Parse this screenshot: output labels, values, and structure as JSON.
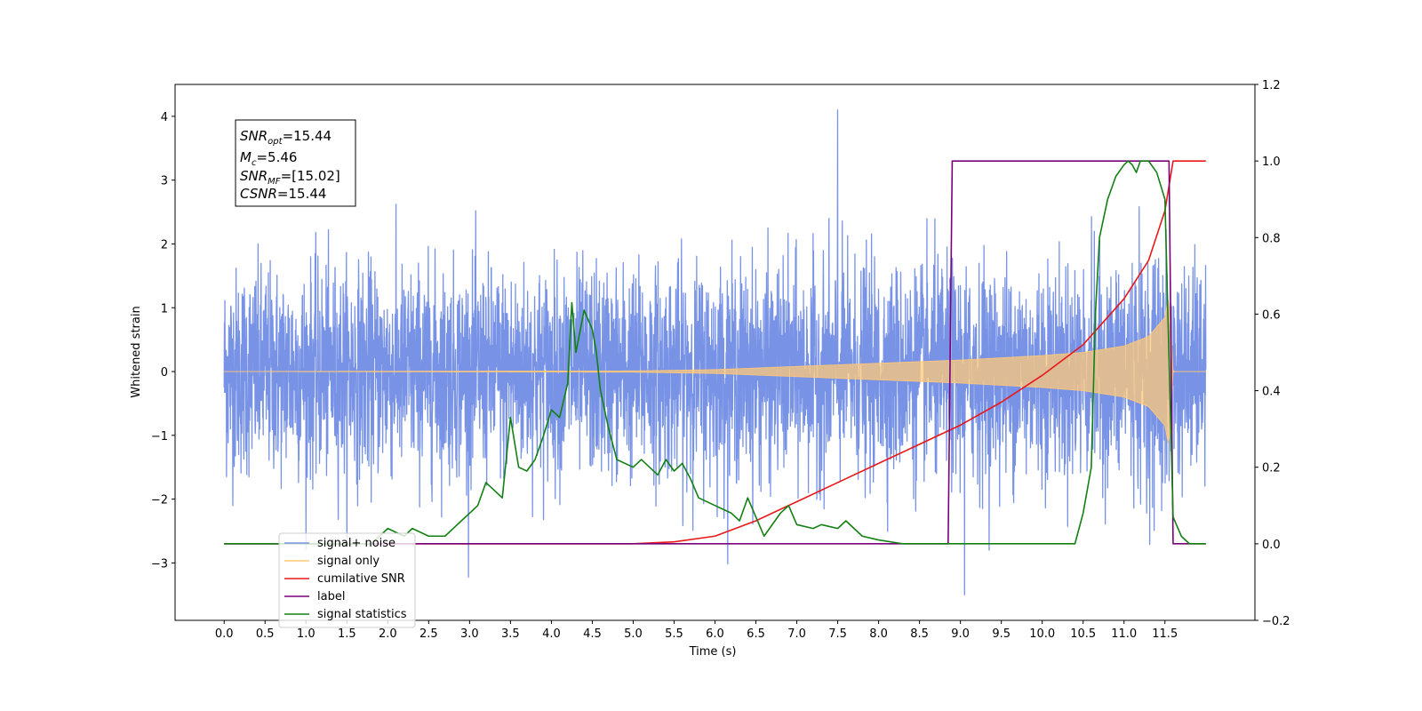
{
  "chart_data": {
    "type": "line",
    "xlabel": "Time (s)",
    "ylabel_left": "Whitened strain",
    "ylabel_right": "",
    "xlim": [
      -0.6,
      12.6
    ],
    "ylim_left": [
      -3.9,
      4.5
    ],
    "ylim_right": [
      -0.2,
      1.2
    ],
    "x_ticks": [
      "0.0",
      "0.5",
      "1.0",
      "1.5",
      "2.0",
      "2.5",
      "3.0",
      "3.5",
      "4.0",
      "4.5",
      "5.0",
      "5.5",
      "6.0",
      "6.5",
      "7.0",
      "7.5",
      "8.0",
      "8.5",
      "9.0",
      "9.5",
      "10.0",
      "10.5",
      "11.0",
      "11.5"
    ],
    "y_ticks_left": [
      "−3",
      "−2",
      "−1",
      "0",
      "1",
      "2",
      "3",
      "4"
    ],
    "y_ticks_right": [
      "−0.2",
      "0.0",
      "0.2",
      "0.4",
      "0.6",
      "0.8",
      "1.0",
      "1.2"
    ],
    "grid": false,
    "legend_position": "lower-left",
    "annotation": {
      "lines": [
        {
          "pre": "SNR",
          "sub": "opt",
          "post": "=15.44"
        },
        {
          "pre": "M",
          "sub": "c",
          "post": "=5.46"
        },
        {
          "pre": "SNR",
          "sub": "MF",
          "post": "=[15.02]"
        },
        {
          "pre": "CSNR",
          "sub": "",
          "post": "=15.44"
        }
      ]
    },
    "series": [
      {
        "name": "signal+ noise",
        "color": "#7893e6",
        "axis": "left",
        "x_range": [
          0.0,
          12.0
        ],
        "noise_std": 0.8,
        "notable_peaks": [
          {
            "x": 7.5,
            "y": 4.1
          },
          {
            "x": 9.05,
            "y": -3.5
          }
        ]
      },
      {
        "name": "signal only",
        "color": "#ffc878",
        "axis": "left",
        "x_range": [
          0.0,
          12.0
        ],
        "envelope": [
          [
            0.0,
            0.0
          ],
          [
            5.0,
            0.01
          ],
          [
            6.0,
            0.03
          ],
          [
            7.0,
            0.08
          ],
          [
            8.0,
            0.13
          ],
          [
            9.0,
            0.18
          ],
          [
            10.0,
            0.25
          ],
          [
            10.5,
            0.3
          ],
          [
            11.0,
            0.4
          ],
          [
            11.3,
            0.55
          ],
          [
            11.5,
            0.85
          ],
          [
            11.55,
            1.2
          ],
          [
            11.6,
            0.0
          ],
          [
            12.0,
            0.0
          ]
        ]
      },
      {
        "name": "cumilative SNR",
        "color": "#e81818",
        "axis": "right",
        "x": [
          0.0,
          5.0,
          5.5,
          6.0,
          6.5,
          7.0,
          7.5,
          8.0,
          8.5,
          9.0,
          9.5,
          10.0,
          10.5,
          11.0,
          11.3,
          11.5,
          11.6,
          12.0
        ],
        "y": [
          0.0,
          0.0,
          0.005,
          0.02,
          0.06,
          0.11,
          0.16,
          0.21,
          0.26,
          0.31,
          0.37,
          0.44,
          0.52,
          0.64,
          0.74,
          0.87,
          1.0,
          1.0
        ]
      },
      {
        "name": "label",
        "color": "#7a007a",
        "axis": "right",
        "x": [
          0.0,
          8.85,
          8.9,
          11.55,
          11.6,
          12.0
        ],
        "y": [
          0.0,
          0.0,
          1.0,
          1.0,
          0.0,
          0.0
        ]
      },
      {
        "name": "signal statistics",
        "color": "#138013",
        "axis": "right",
        "x": [
          0.0,
          1.8,
          2.0,
          2.2,
          2.3,
          2.5,
          2.7,
          2.9,
          3.0,
          3.1,
          3.2,
          3.3,
          3.4,
          3.5,
          3.6,
          3.7,
          3.8,
          3.9,
          4.0,
          4.1,
          4.2,
          4.25,
          4.3,
          4.4,
          4.5,
          4.55,
          4.6,
          4.7,
          4.8,
          5.0,
          5.1,
          5.2,
          5.3,
          5.4,
          5.5,
          5.6,
          5.7,
          5.8,
          6.0,
          6.2,
          6.3,
          6.4,
          6.5,
          6.6,
          6.8,
          6.9,
          7.0,
          7.2,
          7.3,
          7.5,
          7.6,
          7.8,
          8.0,
          8.3,
          8.6,
          9.0,
          10.0,
          10.4,
          10.5,
          10.6,
          10.65,
          10.7,
          10.8,
          10.9,
          11.0,
          11.05,
          11.1,
          11.15,
          11.2,
          11.3,
          11.4,
          11.5,
          11.6,
          11.7,
          11.8,
          12.0
        ],
        "y": [
          0.0,
          0.0,
          0.04,
          0.02,
          0.04,
          0.02,
          0.02,
          0.06,
          0.08,
          0.1,
          0.16,
          0.14,
          0.12,
          0.33,
          0.2,
          0.19,
          0.22,
          0.28,
          0.35,
          0.33,
          0.42,
          0.63,
          0.5,
          0.61,
          0.56,
          0.5,
          0.4,
          0.3,
          0.22,
          0.2,
          0.22,
          0.2,
          0.18,
          0.22,
          0.19,
          0.21,
          0.17,
          0.12,
          0.1,
          0.08,
          0.06,
          0.12,
          0.07,
          0.02,
          0.08,
          0.1,
          0.05,
          0.04,
          0.05,
          0.04,
          0.06,
          0.02,
          0.01,
          0.0,
          0.0,
          0.0,
          0.0,
          0.0,
          0.08,
          0.2,
          0.6,
          0.8,
          0.9,
          0.96,
          0.99,
          1.0,
          0.99,
          0.97,
          1.0,
          1.0,
          0.97,
          0.9,
          0.07,
          0.02,
          0.0,
          0.0
        ]
      }
    ]
  }
}
